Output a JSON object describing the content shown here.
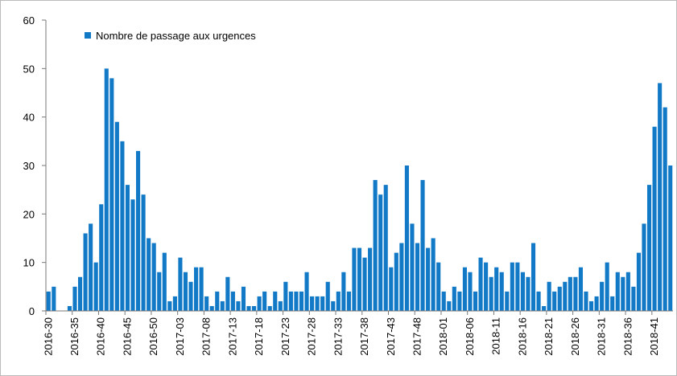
{
  "chart_data": {
    "type": "bar",
    "categories": [
      "2016-30",
      null,
      null,
      null,
      null,
      "2016-35",
      null,
      null,
      null,
      null,
      "2016-40",
      null,
      null,
      null,
      null,
      "2016-45",
      null,
      null,
      null,
      null,
      "2016-50",
      null,
      null,
      null,
      null,
      "2017-03",
      null,
      null,
      null,
      null,
      "2017-08",
      null,
      null,
      null,
      null,
      "2017-13",
      null,
      null,
      null,
      null,
      "2017-18",
      null,
      null,
      null,
      null,
      "2017-23",
      null,
      null,
      null,
      null,
      "2017-28",
      null,
      null,
      null,
      null,
      "2017-33",
      null,
      null,
      null,
      null,
      "2017-38",
      null,
      null,
      null,
      null,
      "2017-43",
      null,
      null,
      null,
      null,
      "2017-48",
      null,
      null,
      null,
      null,
      "2018-01",
      null,
      null,
      null,
      null,
      "2018-06",
      null,
      null,
      null,
      null,
      "2018-11",
      null,
      null,
      null,
      null,
      "2018-16",
      null,
      null,
      null,
      null,
      "2018-21",
      null,
      null,
      null,
      null,
      "2018-26",
      null,
      null,
      null,
      null,
      "2018-31",
      null,
      null,
      null,
      null,
      "2018-36",
      null,
      null,
      null,
      null,
      "2018-41",
      null,
      null,
      null
    ],
    "series": [
      {
        "name": "Nombre de passage aux urgences",
        "color": "#1279c6",
        "values": [
          4,
          5,
          0,
          0,
          1,
          5,
          7,
          16,
          18,
          10,
          22,
          50,
          48,
          39,
          35,
          26,
          23,
          33,
          24,
          15,
          14,
          8,
          12,
          2,
          3,
          11,
          8,
          6,
          9,
          9,
          3,
          1,
          4,
          2,
          7,
          4,
          2,
          5,
          1,
          1,
          3,
          4,
          1,
          4,
          2,
          6,
          4,
          4,
          4,
          8,
          3,
          3,
          3,
          6,
          2,
          4,
          8,
          4,
          13,
          13,
          11,
          13,
          27,
          24,
          26,
          9,
          12,
          14,
          30,
          18,
          14,
          27,
          13,
          15,
          10,
          4,
          2,
          5,
          4,
          9,
          8,
          4,
          11,
          10,
          7,
          9,
          8,
          4,
          10,
          10,
          8,
          7,
          14,
          4,
          1,
          6,
          4,
          5,
          6,
          7,
          7,
          9,
          4,
          2,
          3,
          6,
          10,
          3,
          8,
          7,
          8,
          5,
          12,
          18,
          26,
          38,
          47,
          42,
          30
        ]
      }
    ],
    "ylim": [
      0,
      60
    ],
    "yticks": [
      0,
      10,
      20,
      30,
      40,
      50,
      60
    ],
    "legend": "top-left"
  }
}
